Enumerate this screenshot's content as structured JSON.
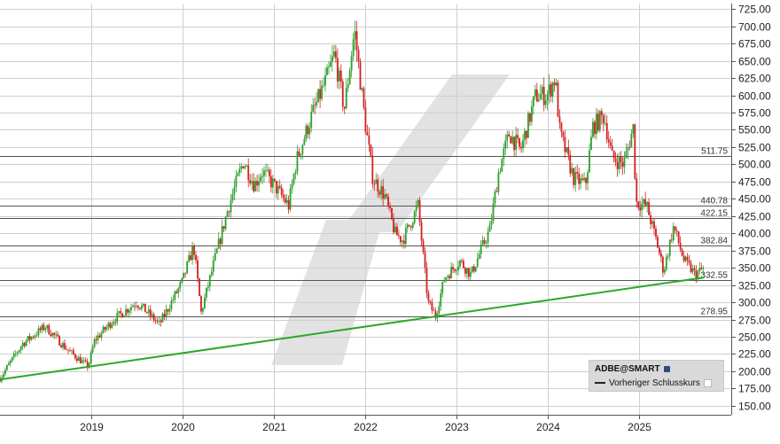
{
  "chart_data": {
    "type": "candlestick",
    "ylim": [
      137,
      733
    ],
    "x_ticks": [
      "2019",
      "2020",
      "2021",
      "2022",
      "2023",
      "2024",
      "2025"
    ],
    "y_ticks": [
      150,
      175,
      200,
      225,
      250,
      275,
      300,
      325,
      350,
      375,
      400,
      425,
      450,
      475,
      500,
      525,
      550,
      575,
      600,
      625,
      650,
      675,
      700,
      725
    ],
    "y_tick_labels": [
      "150.00",
      "175.00",
      "200.00",
      "225.00",
      "250.00",
      "275.00",
      "300.00",
      "325.00",
      "350.00",
      "375.00",
      "400.00",
      "425.00",
      "450.00",
      "475.00",
      "500.00",
      "525.00",
      "550.00",
      "575.00",
      "600.00",
      "625.00",
      "650.00",
      "675.00",
      "700.00",
      "725.00"
    ],
    "horizontal_levels": [
      {
        "label": "511.75",
        "value": 511.75
      },
      {
        "label": "440.78",
        "value": 440.78
      },
      {
        "label": "422.15",
        "value": 422.15
      },
      {
        "label": "382.84",
        "value": 382.84
      },
      {
        "label": "332.55",
        "value": 332.55
      },
      {
        "label": "278.95",
        "value": 278.95
      }
    ],
    "trendline": {
      "start": {
        "date": "2018-01-01",
        "value": 188
      },
      "end": {
        "date": "2025-09-20",
        "value": 336
      }
    },
    "price_path": [
      [
        "2018-01-01",
        190
      ],
      [
        "2018-04-01",
        240
      ],
      [
        "2018-07-01",
        265
      ],
      [
        "2018-10-01",
        230
      ],
      [
        "2018-12-20",
        207
      ],
      [
        "2019-01-15",
        245
      ],
      [
        "2019-04-01",
        275
      ],
      [
        "2019-07-01",
        300
      ],
      [
        "2019-08-15",
        285
      ],
      [
        "2019-10-01",
        268
      ],
      [
        "2020-01-01",
        330
      ],
      [
        "2020-02-15",
        382
      ],
      [
        "2020-03-16",
        285
      ],
      [
        "2020-05-01",
        350
      ],
      [
        "2020-07-01",
        435
      ],
      [
        "2020-09-01",
        505
      ],
      [
        "2020-10-15",
        470
      ],
      [
        "2020-11-15",
        490
      ],
      [
        "2021-01-01",
        470
      ],
      [
        "2021-03-01",
        440
      ],
      [
        "2021-04-01",
        505
      ],
      [
        "2021-06-01",
        570
      ],
      [
        "2021-08-01",
        625
      ],
      [
        "2021-09-01",
        660
      ],
      [
        "2021-10-10",
        580
      ],
      [
        "2021-11-20",
        695
      ],
      [
        "2021-12-31",
        565
      ],
      [
        "2022-02-01",
        480
      ],
      [
        "2022-03-20",
        455
      ],
      [
        "2022-05-01",
        400
      ],
      [
        "2022-06-01",
        390
      ],
      [
        "2022-08-01",
        440
      ],
      [
        "2022-09-10",
        300
      ],
      [
        "2022-10-10",
        280
      ],
      [
        "2022-11-15",
        335
      ],
      [
        "2023-01-15",
        360
      ],
      [
        "2023-03-01",
        340
      ],
      [
        "2023-04-15",
        380
      ],
      [
        "2023-05-15",
        405
      ],
      [
        "2023-06-20",
        490
      ],
      [
        "2023-08-01",
        545
      ],
      [
        "2023-09-15",
        520
      ],
      [
        "2023-11-15",
        600
      ],
      [
        "2023-12-31",
        600
      ],
      [
        "2024-02-01",
        625
      ],
      [
        "2024-02-20",
        545
      ],
      [
        "2024-04-15",
        480
      ],
      [
        "2024-06-01",
        470
      ],
      [
        "2024-07-01",
        555
      ],
      [
        "2024-08-15",
        570
      ],
      [
        "2024-09-15",
        510
      ],
      [
        "2024-11-01",
        500
      ],
      [
        "2024-12-10",
        555
      ],
      [
        "2024-12-20",
        445
      ],
      [
        "2025-02-01",
        440
      ],
      [
        "2025-03-15",
        385
      ],
      [
        "2025-04-10",
        345
      ],
      [
        "2025-05-20",
        410
      ],
      [
        "2025-07-01",
        360
      ],
      [
        "2025-08-15",
        340
      ],
      [
        "2025-09-20",
        350
      ]
    ],
    "legend": {
      "title": "ADBE@SMART",
      "subtitle": "Vorheriger Schlusskurs"
    },
    "colors": {
      "up": "#2e9e2e",
      "down": "#d41f1f",
      "trendline": "#2aa82a",
      "grid": "#cfcfcf",
      "level": "#555555",
      "watermark": "#e2e2e2",
      "background": "#ffffff"
    }
  }
}
